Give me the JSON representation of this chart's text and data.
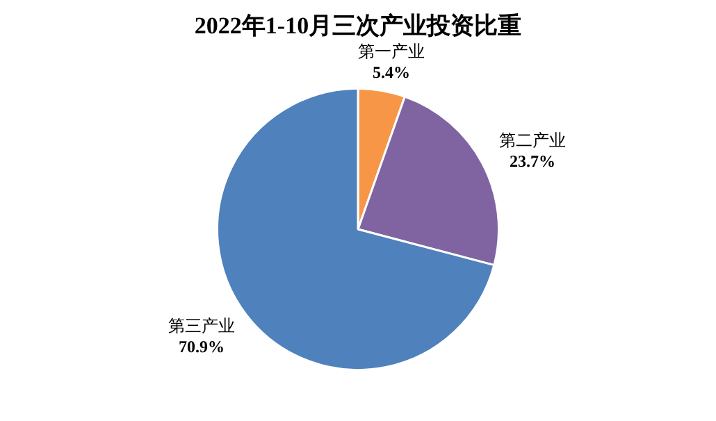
{
  "chart_data": {
    "type": "pie",
    "title": "2022年1-10月三次产业投资比重",
    "categories": [
      "第一产业",
      "第二产业",
      "第三产业"
    ],
    "values": [
      5.4,
      23.7,
      70.9
    ],
    "colors": [
      "#f79646",
      "#8064a2",
      "#4f81bd"
    ],
    "value_labels": [
      "5.4%",
      "23.7%",
      "70.9%"
    ],
    "legend": false
  }
}
